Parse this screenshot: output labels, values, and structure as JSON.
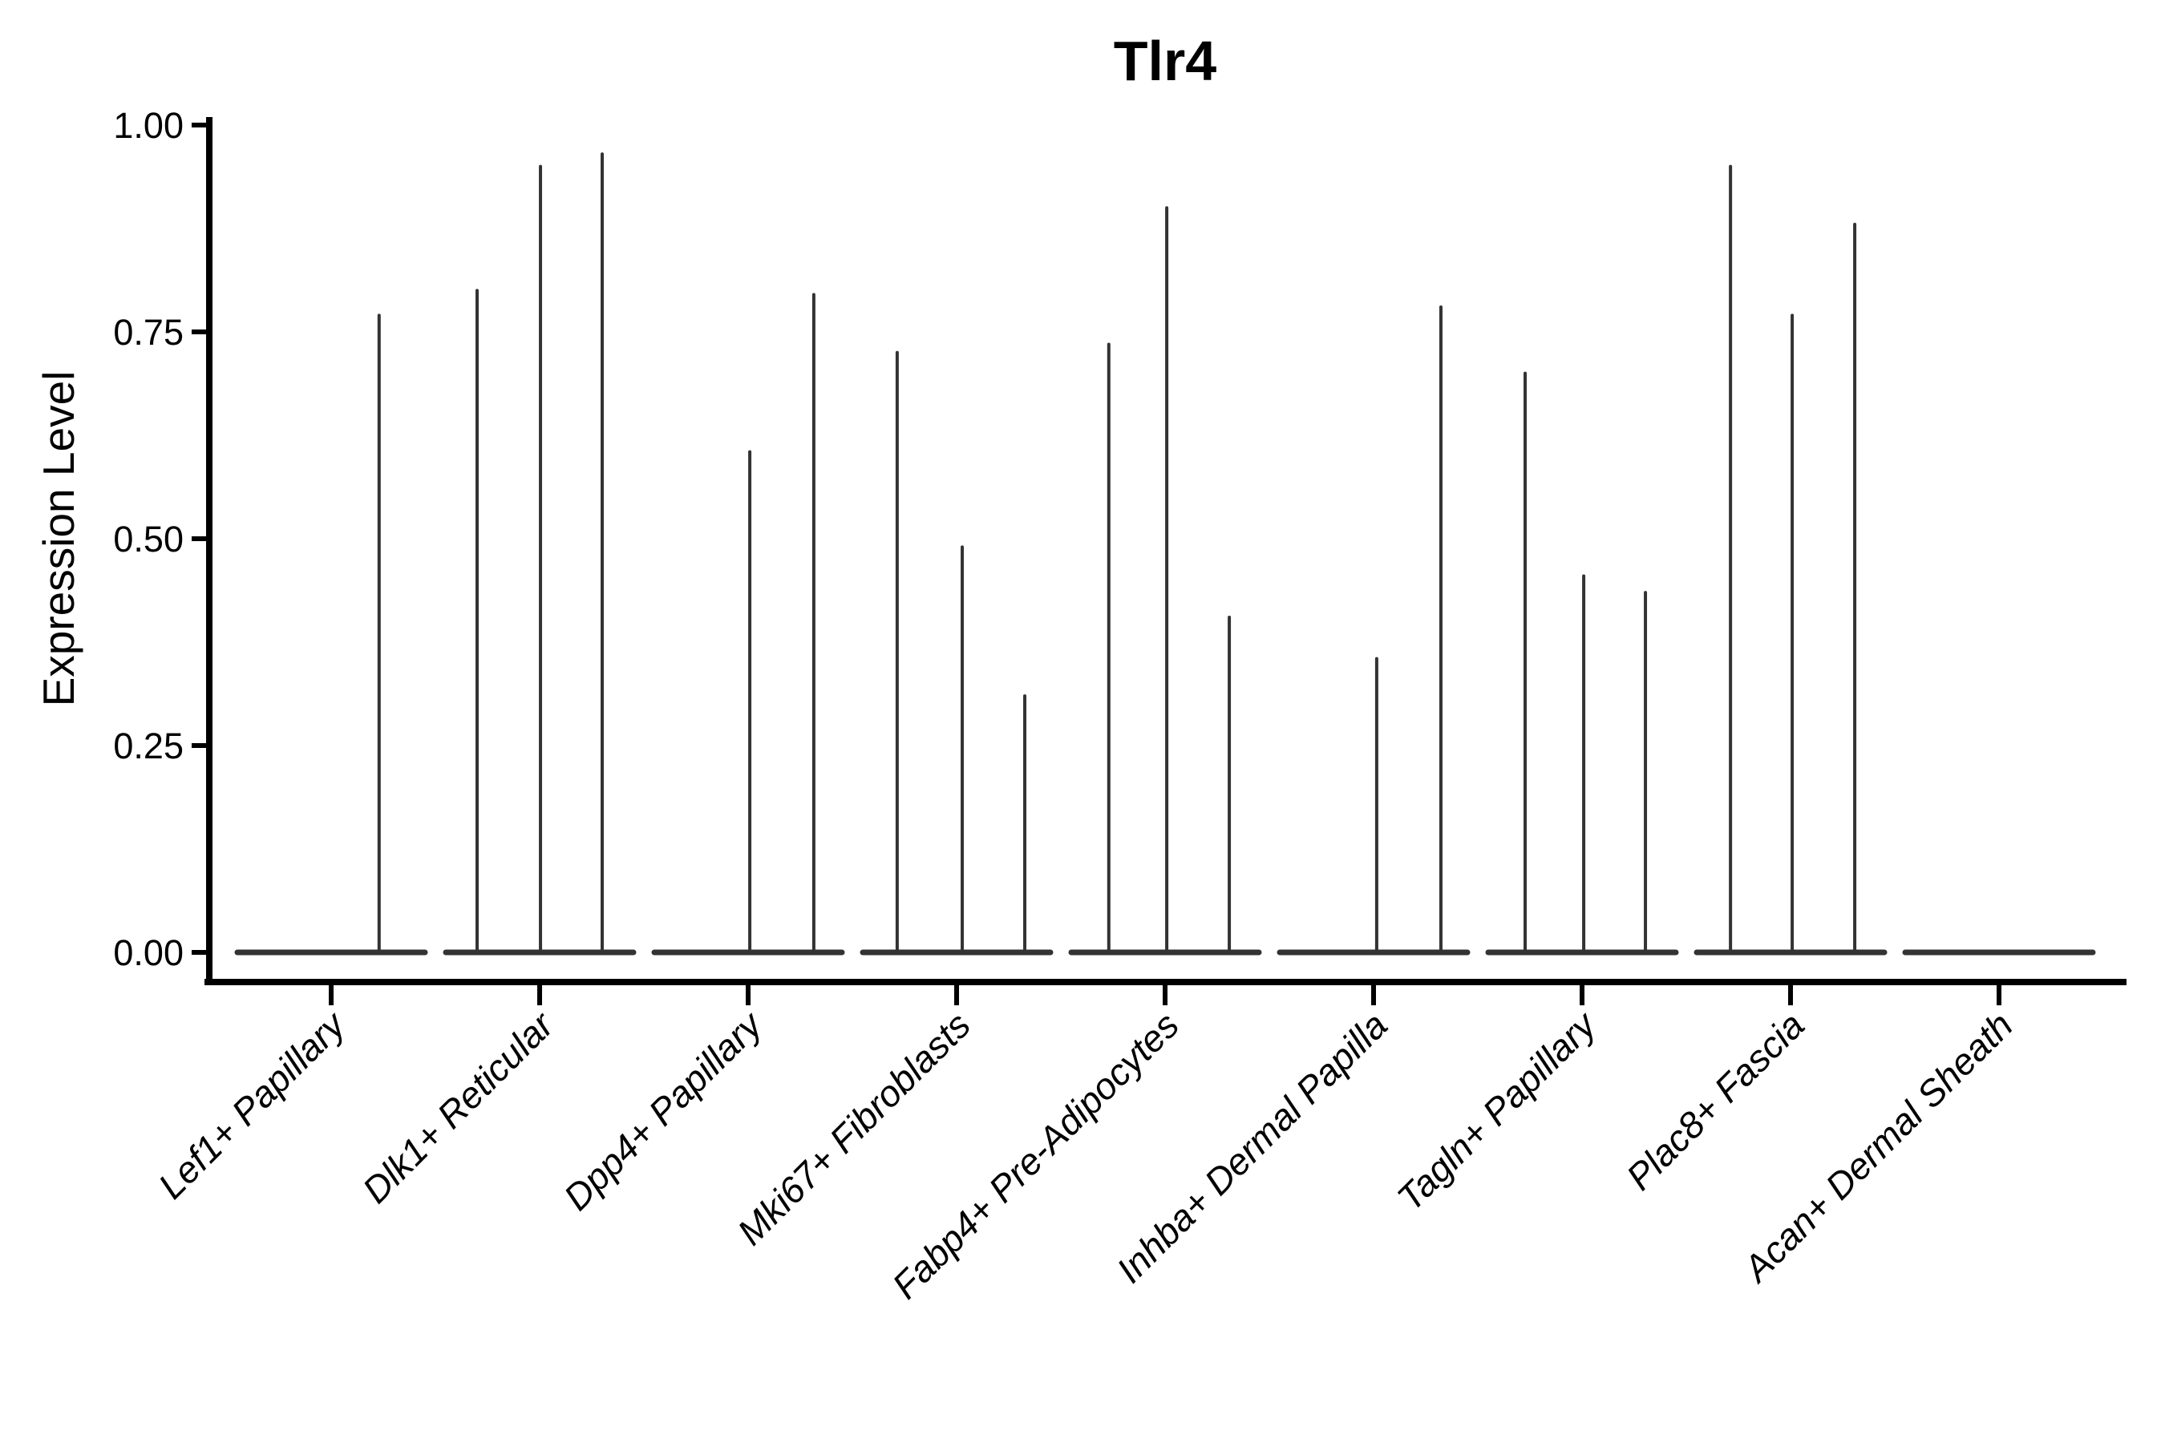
{
  "title": "Tlr4",
  "y_axis": {
    "label": "Expression Level",
    "tick_labels": [
      "0.00",
      "0.25",
      "0.50",
      "0.75",
      "1.00"
    ],
    "tick_values": [
      0,
      0.25,
      0.5,
      0.75,
      1.0
    ]
  },
  "chart_data": {
    "type": "violin",
    "title": "Tlr4",
    "xlabel": "",
    "ylabel": "Expression Level",
    "ylim": [
      0,
      1.0
    ],
    "yticks": [
      0,
      0.25,
      0.5,
      0.75,
      1.0
    ],
    "ytick_labels": [
      "0.00",
      "0.25",
      "0.50",
      "0.75",
      "1.00"
    ],
    "grid": false,
    "legend": false,
    "background_color": "#ffffff",
    "violin_color": "#333333",
    "axis_color": "#000000",
    "categories": [
      "Lef1+ Papillary",
      "Dlk1+ Reticular",
      "Dpp4+ Papillary",
      "Mki67+ Fibroblasts",
      "Fabp4+ Pre-Adipocytes",
      "Inhba+ Dermal Papilla",
      "Tagln+ Papillary",
      "Plac8+ Fascia",
      "Acan+ Dermal Sheath"
    ],
    "description": "Collapsed violin plot: each category shows a flat density bar at expression 0 with thin vertical spikes marking rare expressing cells; spike x positions are fractions of the category slot width, values are expression-level spike tops.",
    "series": [
      {
        "category": "Lef1+ Papillary",
        "baseline_value": 0,
        "spikes": [
          {
            "x_frac": 0.23,
            "value": 0.77
          }
        ]
      },
      {
        "category": "Dlk1+ Reticular",
        "baseline_value": 0,
        "spikes": [
          {
            "x_frac": -0.3,
            "value": 0.8
          },
          {
            "x_frac": 0.004,
            "value": 0.95
          },
          {
            "x_frac": 0.3,
            "value": 0.965
          }
        ]
      },
      {
        "category": "Dpp4+ Papillary",
        "baseline_value": 0,
        "spikes": [
          {
            "x_frac": 0.008,
            "value": 0.605
          },
          {
            "x_frac": 0.315,
            "value": 0.795
          }
        ]
      },
      {
        "category": "Mki67+ Fibroblasts",
        "baseline_value": 0,
        "spikes": [
          {
            "x_frac": -0.285,
            "value": 0.725
          },
          {
            "x_frac": 0.027,
            "value": 0.49
          },
          {
            "x_frac": 0.327,
            "value": 0.31
          }
        ]
      },
      {
        "category": "Fabp4+ Pre-Adipocytes",
        "baseline_value": 0,
        "spikes": [
          {
            "x_frac": -0.27,
            "value": 0.735
          },
          {
            "x_frac": 0.008,
            "value": 0.9
          },
          {
            "x_frac": 0.308,
            "value": 0.405
          }
        ]
      },
      {
        "category": "Inhba+ Dermal Papilla",
        "baseline_value": 0,
        "spikes": [
          {
            "x_frac": 0.015,
            "value": 0.355
          },
          {
            "x_frac": 0.323,
            "value": 0.78
          }
        ]
      },
      {
        "category": "Tagln+ Papillary",
        "baseline_value": 0,
        "spikes": [
          {
            "x_frac": -0.273,
            "value": 0.7
          },
          {
            "x_frac": 0.008,
            "value": 0.455
          },
          {
            "x_frac": 0.304,
            "value": 0.435
          }
        ]
      },
      {
        "category": "Plac8+ Fascia",
        "baseline_value": 0,
        "spikes": [
          {
            "x_frac": -0.288,
            "value": 0.95
          },
          {
            "x_frac": 0.008,
            "value": 0.77
          },
          {
            "x_frac": 0.308,
            "value": 0.88
          }
        ]
      },
      {
        "category": "Acan+ Dermal Sheath",
        "baseline_value": 0,
        "spikes": []
      }
    ]
  }
}
